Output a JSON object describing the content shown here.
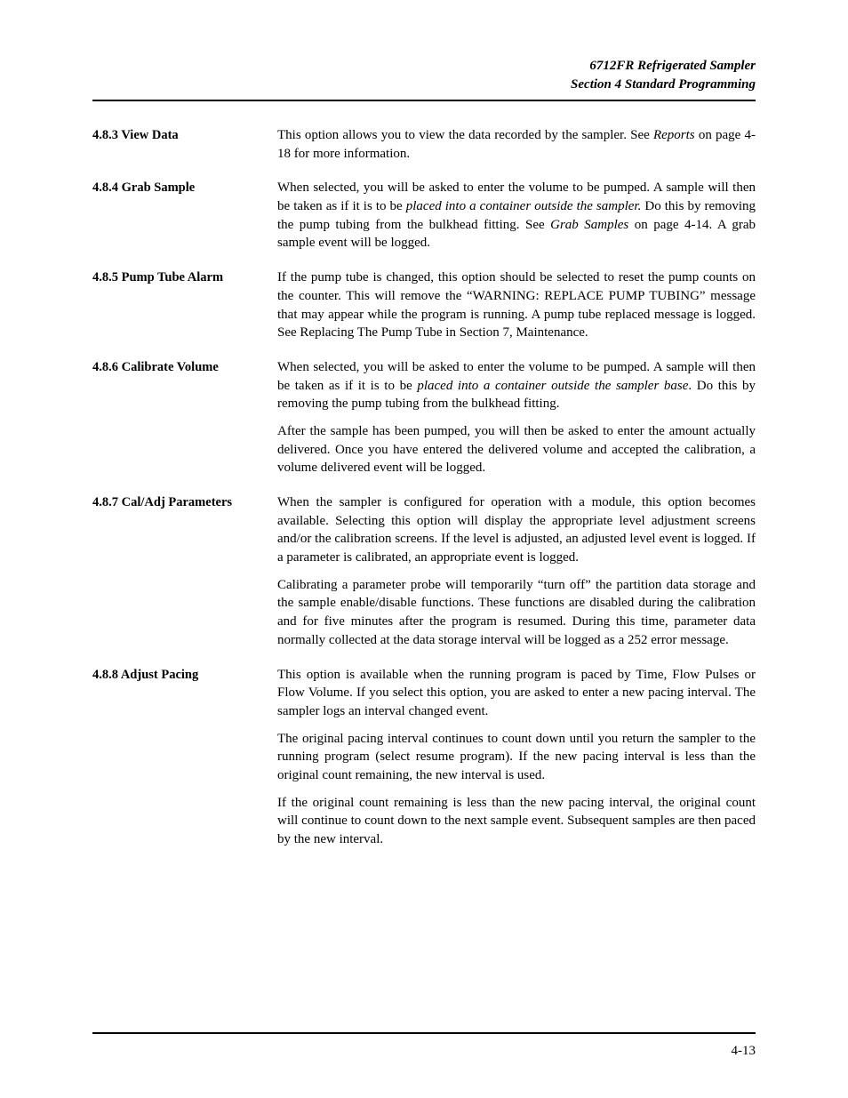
{
  "header": {
    "line1": "6712FR Refrigerated Sampler",
    "line2": "Section 4  Standard Programming"
  },
  "sections": [
    {
      "number": "4.8.3",
      "title": "View Data",
      "paragraphs": [
        {
          "plain": "This option allows you to view the data recorded by the sampler. See "
        },
        {
          "italic": "Reports"
        },
        {
          "plain": " on page 4-18 for more information."
        }
      ]
    },
    {
      "number": "4.8.4",
      "title": "Grab Sample",
      "paragraphs": [
        {
          "html": "When selected, you will be asked to enter the volume to be pumped. A sample will then be taken as if it is to be <em>placed into a container outside the sampler.</em> Do this by removing the pump tubing from the bulkhead fitting. See <em>Grab Samples</em> on page 4-14. A grab sample event will be logged."
        }
      ]
    },
    {
      "number": "4.8.5",
      "title": "Pump Tube Alarm",
      "paragraphs": [
        {
          "html": "If the pump tube is changed, this option should be selected to reset the pump counts on the counter. This will remove the “WARNING: REPLACE PUMP TUBING” message that may appear while the program is running. A pump tube replaced message is logged. See Replacing The Pump Tube in Section 7, Maintenance."
        }
      ]
    },
    {
      "number": "4.8.6",
      "title": "Calibrate Volume",
      "paragraphs": [
        {
          "html": "When selected, you will be asked to enter the volume to be pumped. A sample will then be taken as if it is to be <em>placed into a container outside the sampler base</em>. Do this by removing the pump tubing from the bulkhead fitting."
        },
        {
          "html": "After the sample has been pumped, you will then be asked to enter the amount actually delivered. Once you have entered the delivered volume and accepted the calibration, a volume delivered event will be logged."
        }
      ]
    },
    {
      "number": "4.8.7",
      "title": "Cal/Adj Parameters",
      "paragraphs": [
        {
          "html": "When the sampler is configured for operation with a module, this option becomes available. Selecting this option will display the appropriate level adjustment screens and/or the calibration screens. If the level is adjusted, an adjusted level event is logged. If a parameter is calibrated, an appropriate event is logged."
        },
        {
          "html": "Calibrating a parameter probe will temporarily “turn off” the partition data storage and the sample enable/disable functions. These functions are disabled during the calibration and for five minutes after the program is resumed. During this time, parameter data normally collected at the data storage interval will be logged as a 252 error message."
        }
      ]
    },
    {
      "number": "4.8.8",
      "title": "Adjust Pacing",
      "paragraphs": [
        {
          "html": "This option is available when the running program is paced by Time, Flow Pulses or Flow Volume. If you select this option, you are asked to enter a new pacing interval. The sampler logs an interval changed event."
        },
        {
          "html": "The original pacing interval continues to count down until you return the sampler to the running program (select resume program). If the new pacing interval is less than the original count remaining, the new interval is used."
        },
        {
          "html": "If the original count remaining is less than the new pacing interval, the original count will continue to count down to the next sample event. Subsequent samples are then paced by the new interval."
        }
      ]
    }
  ],
  "page_number": "4-13"
}
